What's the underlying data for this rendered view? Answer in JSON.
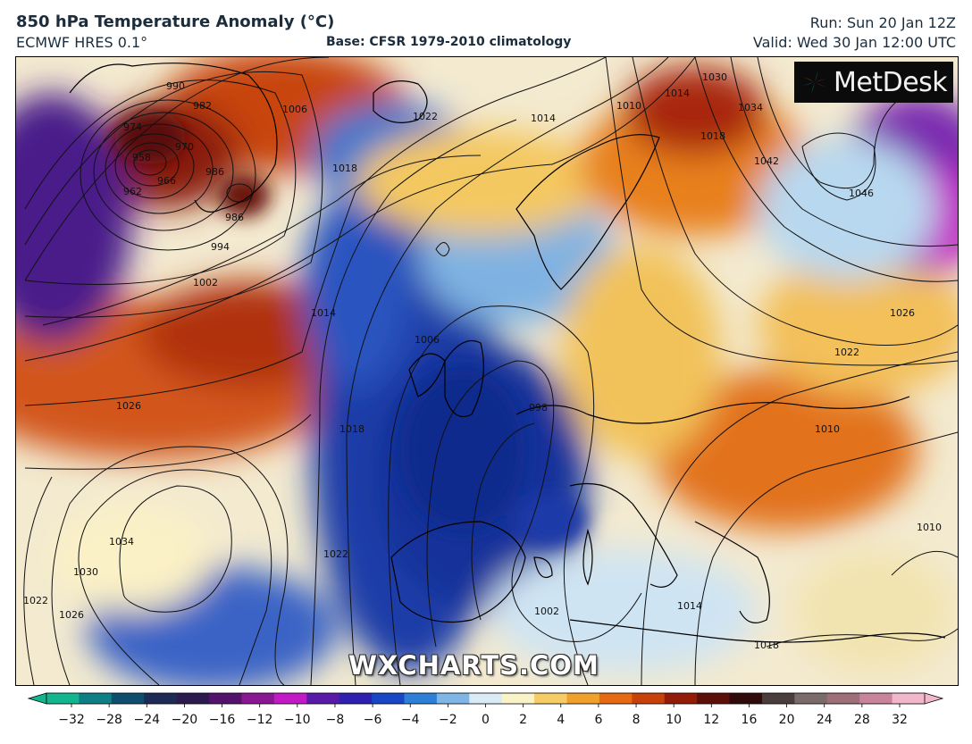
{
  "header": {
    "title": "850 hPa Temperature Anomaly (°C)",
    "model": "ECMWF HRES 0.1°",
    "base": "Base: CFSR 1979-2010 climatology",
    "run": "Run: Sun 20 Jan 12Z",
    "valid": "Valid: Wed 30 Jan 12:00 UTC"
  },
  "logo": {
    "text": "MetDesk",
    "icon": "metdesk-pinwheel-icon"
  },
  "watermark": "WXCHARTS.COM",
  "colorbar": {
    "unit": "°C",
    "ticks": [
      "−32",
      "−28",
      "−24",
      "−20",
      "−16",
      "−12",
      "−10",
      "−8",
      "−6",
      "−4",
      "−2",
      "0",
      "2",
      "4",
      "6",
      "8",
      "10",
      "12",
      "16",
      "20",
      "24",
      "28",
      "32"
    ],
    "colors": [
      "#13b58e",
      "#0f7f86",
      "#0d4e6e",
      "#1d2a55",
      "#2b1a4d",
      "#54136a",
      "#8a1694",
      "#c21bc6",
      "#5a1aa8",
      "#2f21b0",
      "#1846c4",
      "#2e7fd6",
      "#7fb6e6",
      "#d9ecf6",
      "#fbf3c8",
      "#f6cc66",
      "#f0a02d",
      "#e66a14",
      "#c8400a",
      "#931c08",
      "#5c0e08",
      "#2e0a0a",
      "#4a3d3d",
      "#7b6b6b",
      "#9e6f78",
      "#c8849a",
      "#f2b7cc"
    ]
  },
  "isobars": [
    "990",
    "982",
    "974",
    "970",
    "958",
    "962",
    "966",
    "986",
    "986",
    "994",
    "1002",
    "1006",
    "1018",
    "1022",
    "1014",
    "1010",
    "1014",
    "1018",
    "1030",
    "1034",
    "1042",
    "1046",
    "1026",
    "1022",
    "1010",
    "1010",
    "1026",
    "1014",
    "1006",
    "1018",
    "1022",
    "998",
    "1034",
    "1030",
    "1026",
    "1022",
    "1002",
    "1014",
    "1018"
  ],
  "map_colors": {
    "ocean_cold": "#1d3fb0",
    "warm_anomaly": "#d9661a",
    "strong_warm": "#8a1a0a",
    "cold_anomaly": "#5a1aa8",
    "neutral": "#f4f0dc"
  }
}
